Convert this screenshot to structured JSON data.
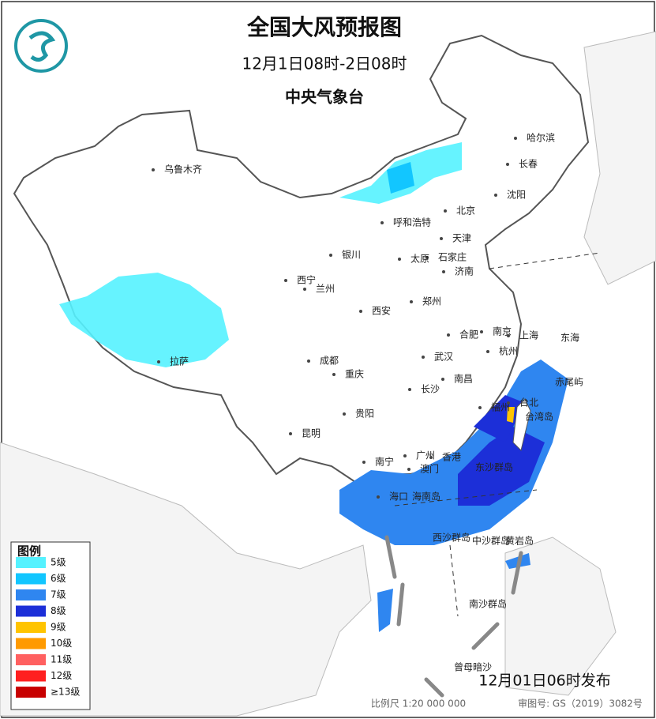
{
  "header": {
    "title": "全国大风预报图",
    "subtitle": "12月1日08时-2日08时",
    "agency": "中央气象台"
  },
  "legend": {
    "title": "图例",
    "items": [
      {
        "label": "5级",
        "color": "#55f2ff"
      },
      {
        "label": "6级",
        "color": "#12c6ff"
      },
      {
        "label": "7级",
        "color": "#2f86f0"
      },
      {
        "label": "8级",
        "color": "#1c2fd8"
      },
      {
        "label": "9级",
        "color": "#ffc400"
      },
      {
        "label": "10级",
        "color": "#ff9a00"
      },
      {
        "label": "11级",
        "color": "#ff6060"
      },
      {
        "label": "12级",
        "color": "#ff2020"
      },
      {
        "label": "≥13级",
        "color": "#c80000"
      }
    ]
  },
  "cities": [
    "乌鲁木齐",
    "哈尔滨",
    "长春",
    "沈阳",
    "北京",
    "天津",
    "呼和浩特",
    "石家庄",
    "太原",
    "济南",
    "银川",
    "西宁",
    "兰州",
    "郑州",
    "西安",
    "合肥",
    "南京",
    "上海",
    "杭州",
    "武汉",
    "成都",
    "重庆",
    "长沙",
    "南昌",
    "福州",
    "台北",
    "贵阳",
    "昆明",
    "拉萨",
    "南宁",
    "广州",
    "香港",
    "澳门",
    "海口",
    "海南岛",
    "台湾岛",
    "东海",
    "东沙群岛",
    "西沙群岛",
    "中沙群岛",
    "黄岩岛",
    "南沙群岛",
    "曾母暗沙",
    "赤尾屿"
  ],
  "footer": {
    "issued": "12月01日06时发布",
    "scale": "比例尺 1:20 000 000",
    "review_no": "审图号: GS（2019）3082号"
  }
}
